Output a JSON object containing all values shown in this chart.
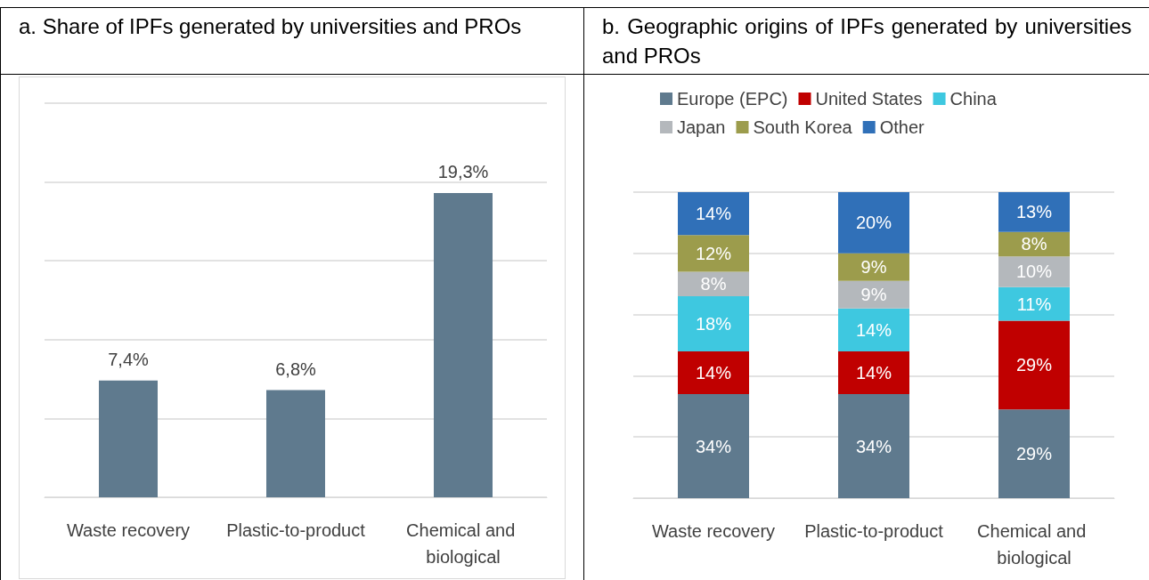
{
  "chart_data": [
    {
      "type": "bar",
      "title": "a. Share of IPFs generated by universities and PROs",
      "categories": [
        "Waste recovery",
        "Plastic-to-product",
        "Chemical and biological"
      ],
      "values": [
        7.4,
        6.8,
        19.3
      ],
      "value_labels": [
        "7,4%",
        "6,8%",
        "19,3%"
      ],
      "color": "#5f7a8e",
      "ylim": [
        0,
        25
      ],
      "yticks": [
        {
          "value": 0,
          "label": null
        },
        {
          "value": 5,
          "label": null
        },
        {
          "value": 10,
          "label": null
        },
        {
          "value": 15,
          "label": null
        },
        {
          "value": 20,
          "label": null
        },
        {
          "value": 25,
          "label": null
        }
      ],
      "grid": "y",
      "tick_labels": "x"
    },
    {
      "type": "bar",
      "title": "b. Geographic origins of IPFs generated by universities and PROs",
      "categories": [
        "Waste recovery",
        "Plastic-to-product",
        "Chemical and biological"
      ],
      "stacked": true,
      "series": [
        {
          "name": "Europe (EPC)",
          "color": "#5f7a8e",
          "values": [
            34,
            34,
            29
          ],
          "value_labels": [
            "34%",
            "34%",
            "29%"
          ]
        },
        {
          "name": "United States",
          "color": "#c00000",
          "values": [
            14,
            14,
            29
          ],
          "value_labels": [
            "14%",
            "14%",
            "29%"
          ]
        },
        {
          "name": "China",
          "color": "#3ec8e0",
          "values": [
            18,
            14,
            11
          ],
          "value_labels": [
            "18%",
            "14%",
            "11%"
          ]
        },
        {
          "name": "Japan",
          "color": "#b4b8bc",
          "values": [
            8,
            9,
            10
          ],
          "value_labels": [
            "8%",
            "9%",
            "10%"
          ]
        },
        {
          "name": "South Korea",
          "color": "#9c9c4c",
          "values": [
            12,
            9,
            8
          ],
          "value_labels": [
            "12%",
            "9%",
            "8%"
          ]
        },
        {
          "name": "Other",
          "color": "#3070b8",
          "values": [
            14,
            20,
            13
          ],
          "value_labels": [
            "14%",
            "20%",
            "13%"
          ]
        }
      ],
      "ylim": [
        0,
        100
      ],
      "yticks": [
        {
          "value": 0,
          "label": null
        },
        {
          "value": 20,
          "label": null
        },
        {
          "value": 40,
          "label": null
        },
        {
          "value": 60,
          "label": null
        },
        {
          "value": 80,
          "label": null
        },
        {
          "value": 100,
          "label": null
        }
      ],
      "grid": "y",
      "tick_labels": "x",
      "legend": "top"
    }
  ]
}
